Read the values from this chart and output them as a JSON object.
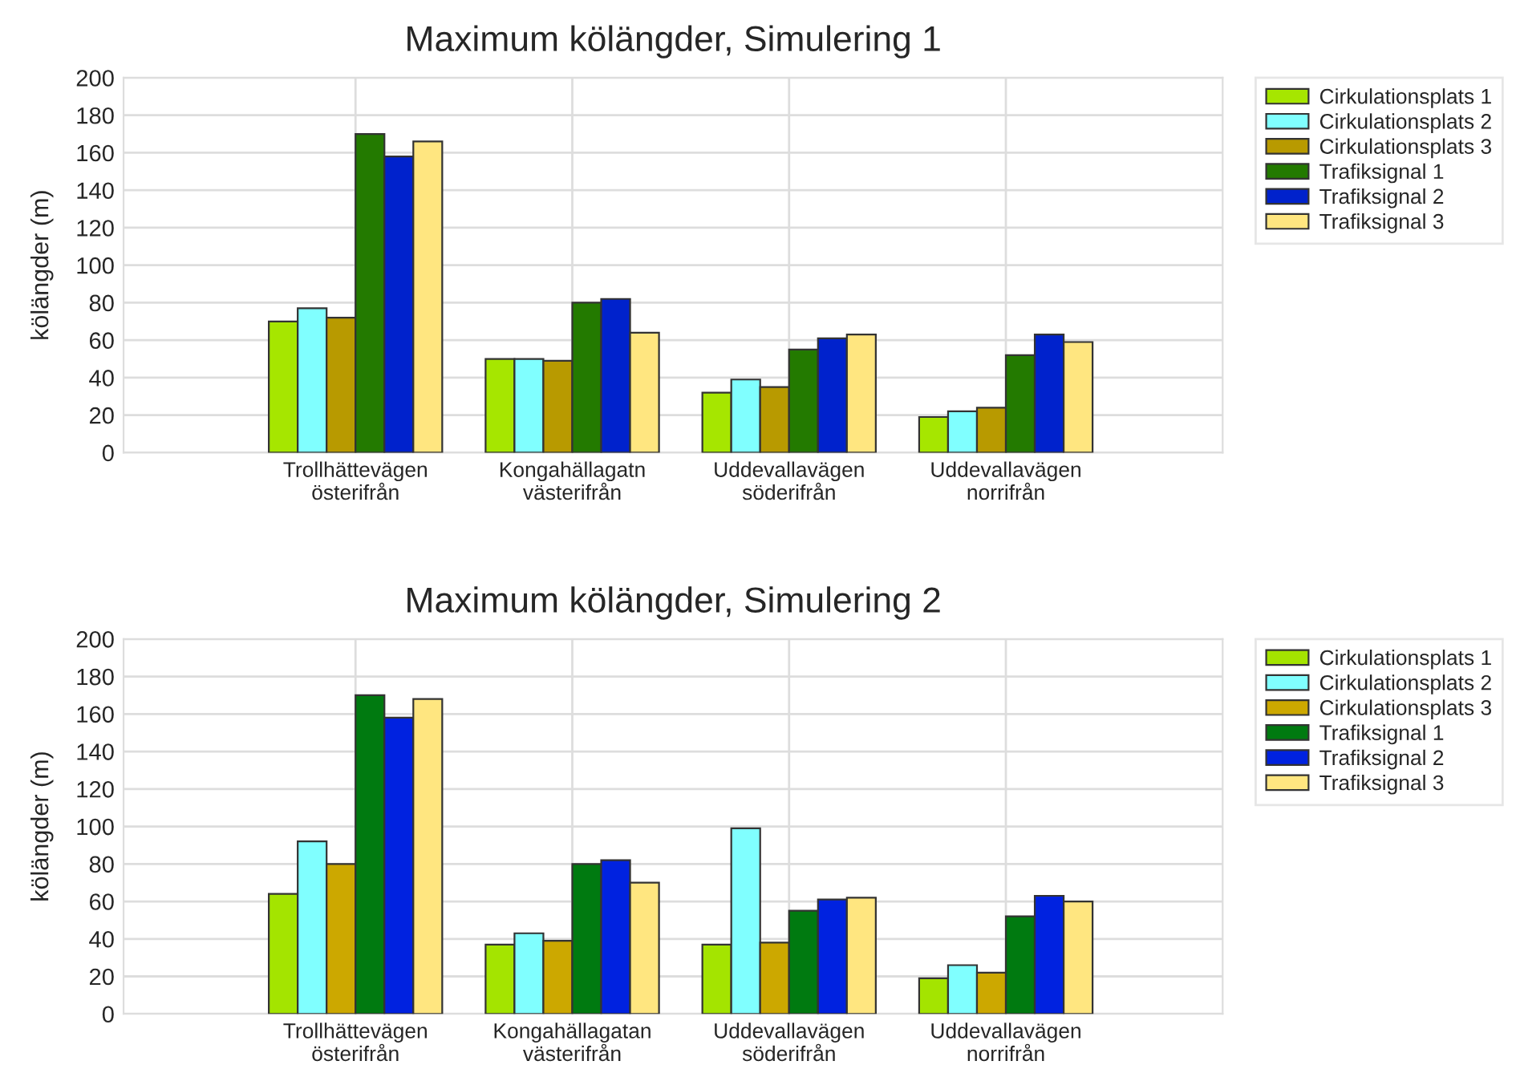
{
  "chart_data": [
    {
      "type": "bar",
      "title": "Maximum kölängder, Simulering 1",
      "ylabel": "kölängder (m)",
      "categories": [
        "Trollhättevägen\nösterifrån",
        "Kongahällagatn\nvästerifrån",
        "Uddevallavägen\nsöderifrån",
        "Uddevallavägen\nnorrifrån"
      ],
      "ylim": [
        0,
        200
      ],
      "yticks": [
        0,
        20,
        40,
        60,
        80,
        100,
        120,
        140,
        160,
        180,
        200
      ],
      "grid": true,
      "legend": "right",
      "series": [
        {
          "name": "Cirkulationsplats 1",
          "color": "#a6e600",
          "values": [
            70,
            50,
            32,
            19
          ]
        },
        {
          "name": "Cirkulationsplats 2",
          "color": "#80ffff",
          "values": [
            77,
            50,
            39,
            22
          ]
        },
        {
          "name": "Cirkulationsplats 3",
          "color": "#b89a00",
          "values": [
            72,
            49,
            35,
            24
          ]
        },
        {
          "name": "Trafiksignal 1",
          "color": "#237a00",
          "values": [
            170,
            80,
            55,
            52
          ]
        },
        {
          "name": "Trafiksignal 2",
          "color": "#0022cc",
          "values": [
            158,
            82,
            61,
            63
          ]
        },
        {
          "name": "Trafiksignal 3",
          "color": "#ffe680",
          "values": [
            166,
            64,
            63,
            59
          ]
        }
      ]
    },
    {
      "type": "bar",
      "title": "Maximum kölängder, Simulering 2",
      "ylabel": "kölängder (m)",
      "categories": [
        "Trollhättevägen\nösterifrån",
        "Kongahällagatan\nvästerifrån",
        "Uddevallavägen\nsöderifrån",
        "Uddevallavägen\nnorrifrån"
      ],
      "ylim": [
        0,
        200
      ],
      "yticks": [
        0,
        20,
        40,
        60,
        80,
        100,
        120,
        140,
        160,
        180,
        200
      ],
      "grid": true,
      "legend": "right",
      "series": [
        {
          "name": "Cirkulationsplats 1",
          "color": "#a4e400",
          "values": [
            64,
            37,
            37,
            19
          ]
        },
        {
          "name": "Cirkulationsplats 2",
          "color": "#80ffff",
          "values": [
            92,
            43,
            99,
            26
          ]
        },
        {
          "name": "Cirkulationsplats 3",
          "color": "#cca800",
          "values": [
            80,
            39,
            38,
            22
          ]
        },
        {
          "name": "Trafiksignal 1",
          "color": "#007a10",
          "values": [
            170,
            80,
            55,
            52
          ]
        },
        {
          "name": "Trafiksignal 2",
          "color": "#0022e0",
          "values": [
            158,
            82,
            61,
            63
          ]
        },
        {
          "name": "Trafiksignal 3",
          "color": "#ffe680",
          "values": [
            168,
            70,
            62,
            60
          ]
        }
      ]
    }
  ]
}
